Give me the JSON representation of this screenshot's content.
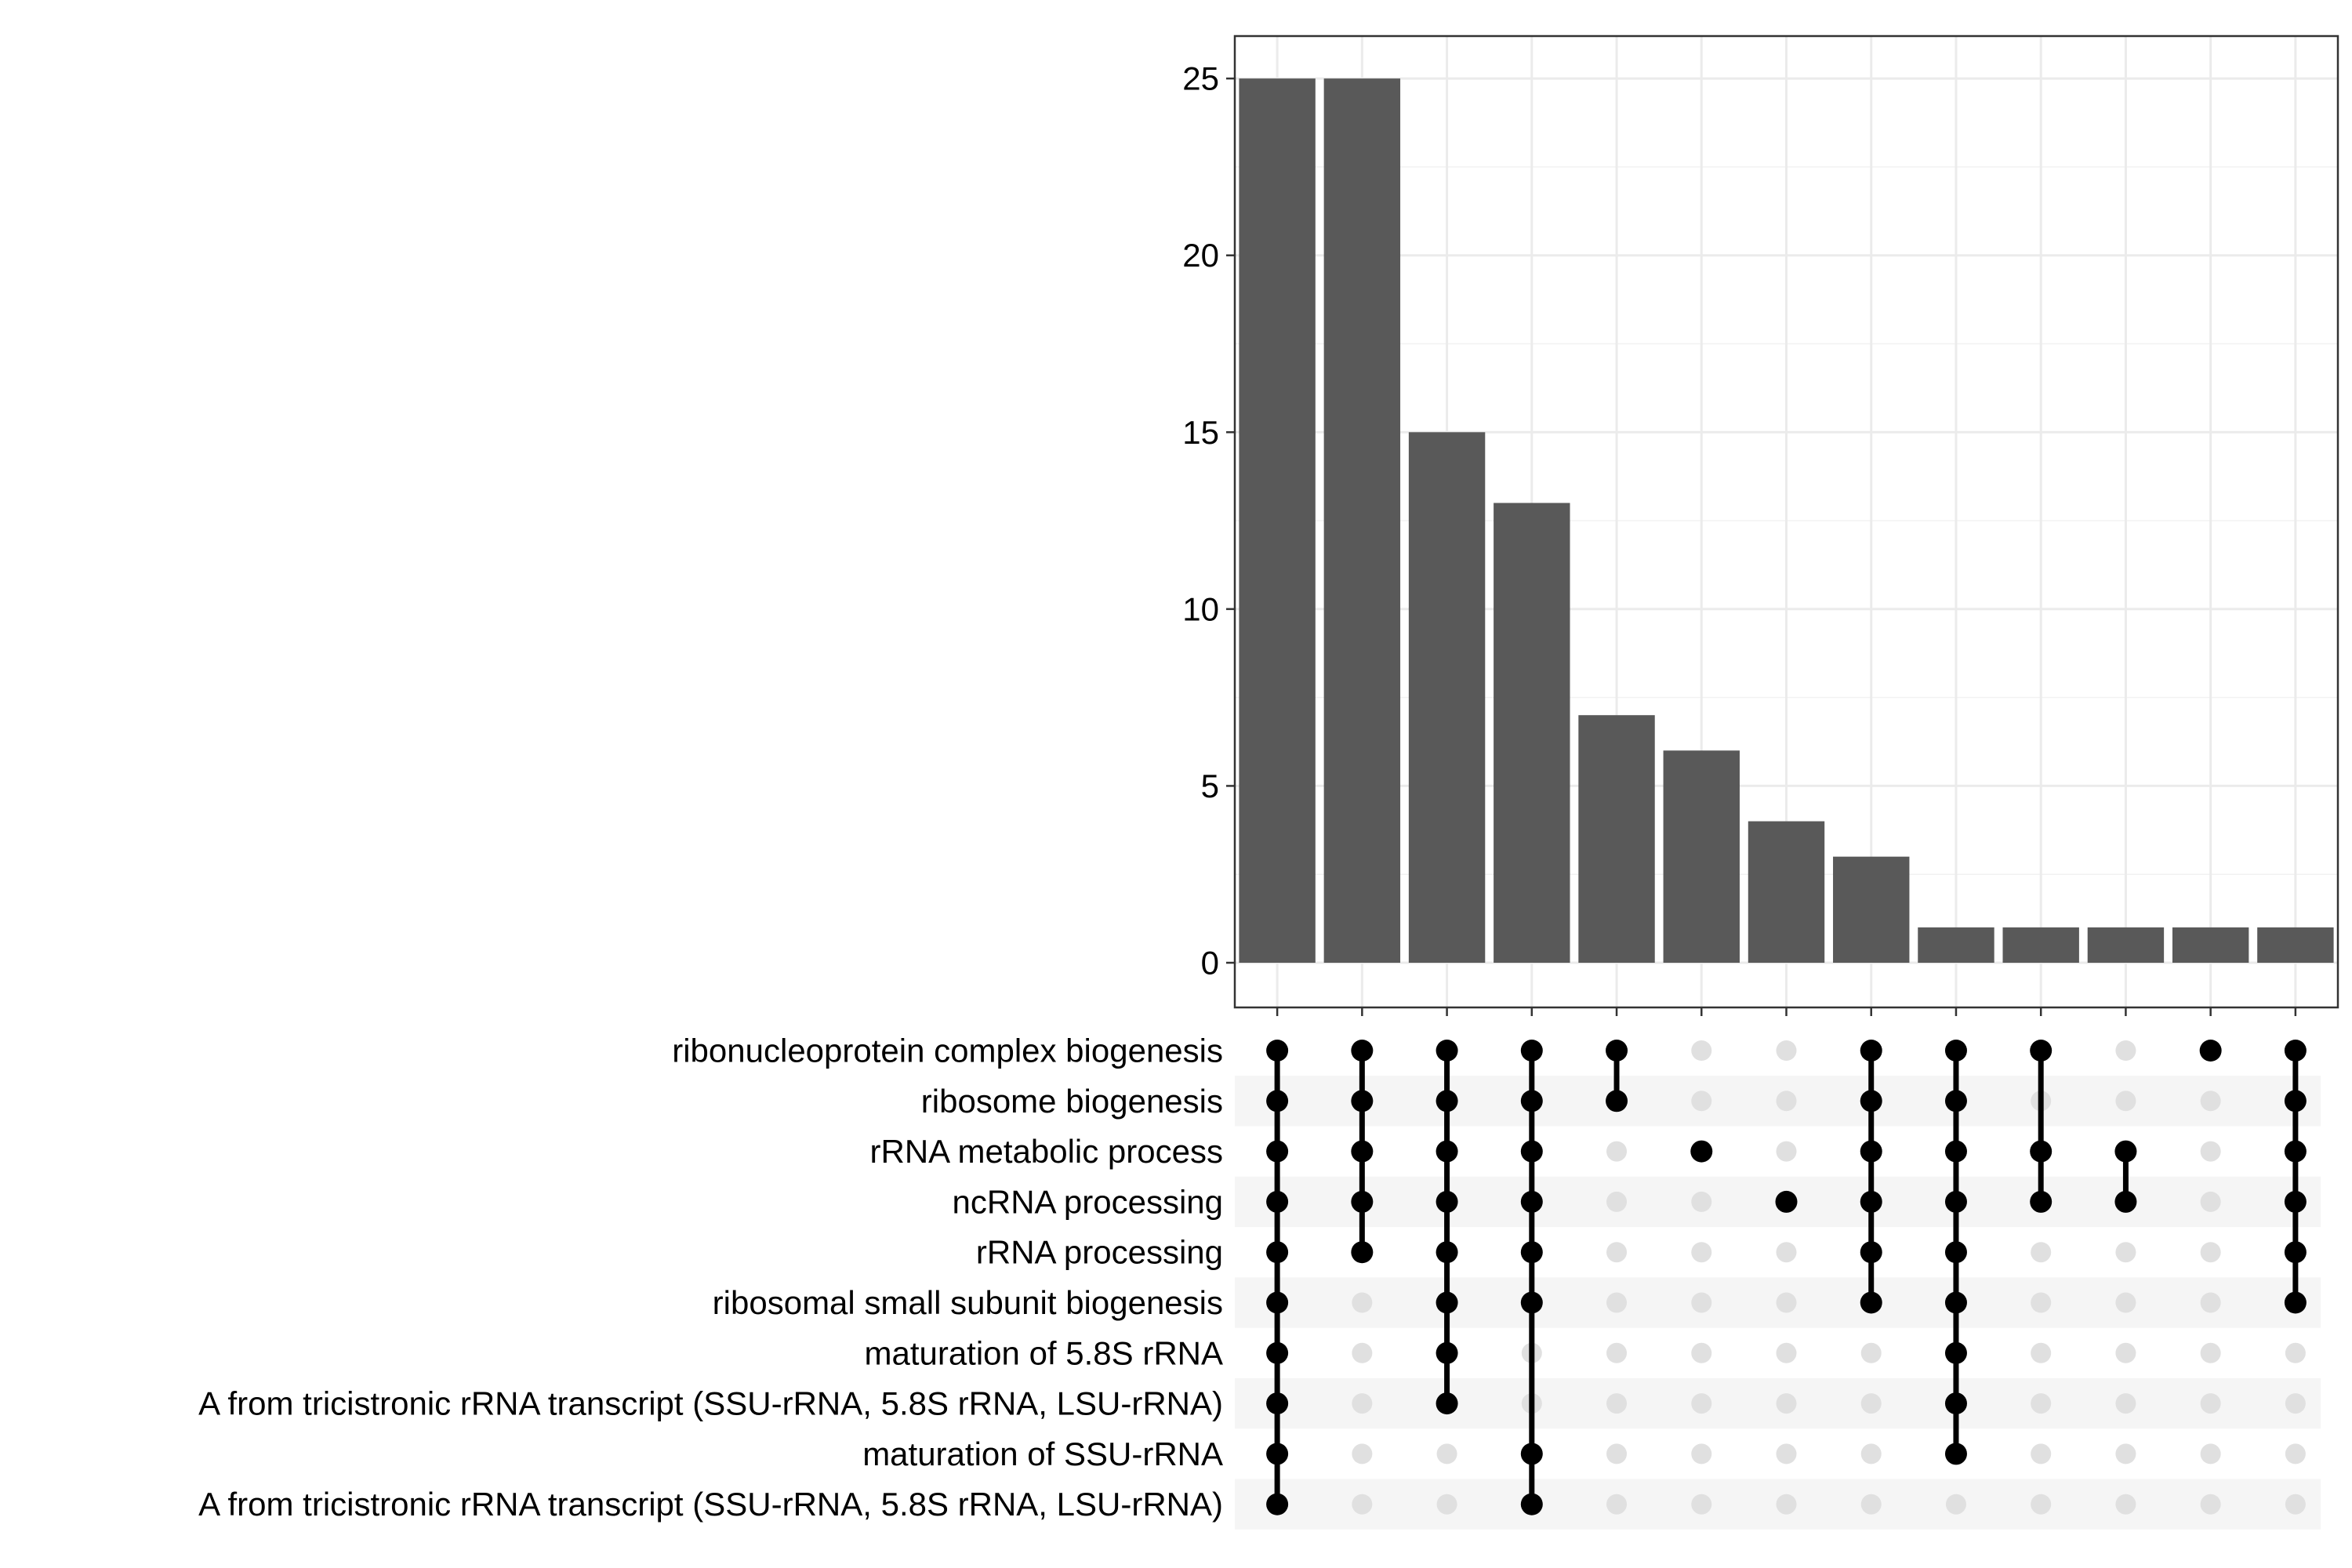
{
  "chart_data": {
    "type": "bar",
    "title": "",
    "xlabel": "",
    "ylabel": "",
    "ylim": [
      0,
      26.2
    ],
    "yticks": [
      0,
      5,
      10,
      15,
      20,
      25
    ],
    "grid": true,
    "bar_color": "#595959",
    "dot_on_color": "#000000",
    "dot_off_color": "#e0e0e0",
    "stripe_color": "#f5f5f5",
    "sets": [
      "ribonucleoprotein complex biogenesis",
      "ribosome biogenesis",
      "rRNA metabolic process",
      "ncRNA processing",
      "rRNA processing",
      "ribosomal small subunit biogenesis",
      "maturation of 5.8S rRNA",
      "A from tricistronic rRNA transcript (SSU-rRNA, 5.8S rRNA, LSU-rRNA)",
      "maturation of SSU-rRNA",
      "A from tricistronic rRNA transcript (SSU-rRNA, 5.8S rRNA, LSU-rRNA)"
    ],
    "intersections": [
      {
        "value": 25,
        "members": [
          0,
          1,
          2,
          3,
          4,
          5,
          6,
          7,
          8,
          9
        ]
      },
      {
        "value": 25,
        "members": [
          0,
          1,
          2,
          3,
          4
        ]
      },
      {
        "value": 15,
        "members": [
          0,
          1,
          2,
          3,
          4,
          5,
          6,
          7
        ]
      },
      {
        "value": 13,
        "members": [
          0,
          1,
          2,
          3,
          4,
          5,
          8,
          9
        ]
      },
      {
        "value": 7,
        "members": [
          0,
          1
        ]
      },
      {
        "value": 6,
        "members": [
          2
        ]
      },
      {
        "value": 4,
        "members": [
          3
        ]
      },
      {
        "value": 3,
        "members": [
          0,
          1,
          2,
          3,
          4,
          5
        ]
      },
      {
        "value": 1,
        "members": [
          0,
          1,
          2,
          3,
          4,
          5,
          6,
          7,
          8
        ]
      },
      {
        "value": 1,
        "members": [
          0,
          2,
          3
        ]
      },
      {
        "value": 1,
        "members": [
          2,
          3
        ]
      },
      {
        "value": 1,
        "members": [
          0
        ]
      },
      {
        "value": 1,
        "members": [
          0,
          1,
          2,
          3,
          4,
          5
        ]
      }
    ]
  }
}
